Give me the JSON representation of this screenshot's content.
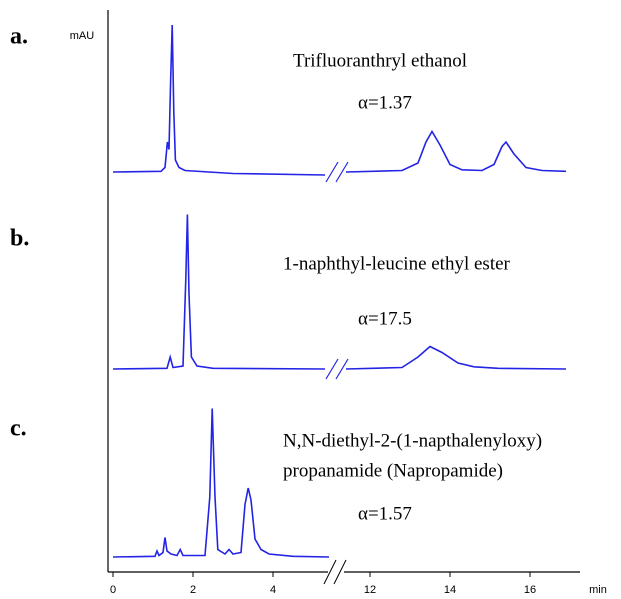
{
  "chart_data": {
    "type": "line",
    "ylabel": "mAU",
    "xlabel": "min",
    "color": "#2424e6",
    "xlim": [
      0,
      17
    ],
    "xbreak": [
      5.4,
      11
    ],
    "xticks": [
      0,
      2,
      4,
      12,
      14,
      16
    ],
    "panels": [
      {
        "label": "a.",
        "title": [
          "Trifluoranthryl ethanol"
        ],
        "annotation": "α=1.37",
        "ylim": [
          0,
          100
        ],
        "x": [
          0,
          1.2,
          1.3,
          1.36,
          1.4,
          1.44,
          1.48,
          1.52,
          1.56,
          1.65,
          1.8,
          3,
          5.3,
          8,
          11.4,
          12.8,
          13.2,
          13.4,
          13.55,
          13.75,
          14,
          14.3,
          14.8,
          15.1,
          15.3,
          15.4,
          15.6,
          15.9,
          16.3,
          16.9
        ],
        "values": [
          0,
          0.5,
          3,
          20,
          15,
          60,
          98,
          40,
          8,
          3,
          1,
          -1,
          -2,
          null,
          0,
          1,
          6,
          20,
          27,
          18,
          5,
          1.5,
          1,
          5,
          17,
          20,
          12,
          3,
          1,
          0.5
        ]
      },
      {
        "label": "b.",
        "title": [
          "1-naphthyl-leucine ethyl ester"
        ],
        "annotation": "α=17.5",
        "ylim": [
          0,
          100
        ],
        "x": [
          0,
          1.35,
          1.43,
          1.5,
          1.75,
          1.82,
          1.86,
          1.9,
          1.96,
          2.1,
          2.5,
          5.3,
          8,
          11.4,
          12.8,
          13.2,
          13.5,
          13.8,
          14.2,
          14.6,
          15.2,
          16.9
        ],
        "values": [
          0,
          0.5,
          8,
          1,
          2,
          60,
          103,
          50,
          8,
          2,
          0.5,
          0,
          null,
          0,
          1,
          8,
          15,
          11,
          4,
          1.5,
          0.5,
          0
        ]
      },
      {
        "label": "c.",
        "title": [
          "N,N-diethyl-2-(1-napthalenyloxy)",
          "propanamide (Napropamide)"
        ],
        "annotation": "α=1.57",
        "ylim": [
          0,
          100
        ],
        "x": [
          0,
          1.05,
          1.1,
          1.15,
          1.25,
          1.3,
          1.35,
          1.45,
          1.6,
          1.68,
          1.75,
          2.3,
          2.42,
          2.48,
          2.55,
          2.62,
          2.8,
          2.9,
          3.0,
          3.2,
          3.3,
          3.38,
          3.45,
          3.55,
          3.7,
          3.9,
          4.5,
          5.4
        ],
        "values": [
          0,
          0.5,
          4,
          1,
          3,
          13,
          4,
          2,
          1,
          5,
          1,
          1,
          40,
          99,
          40,
          5,
          2,
          5,
          2,
          3,
          35,
          46,
          38,
          12,
          5,
          2,
          0.5,
          0
        ]
      }
    ]
  }
}
